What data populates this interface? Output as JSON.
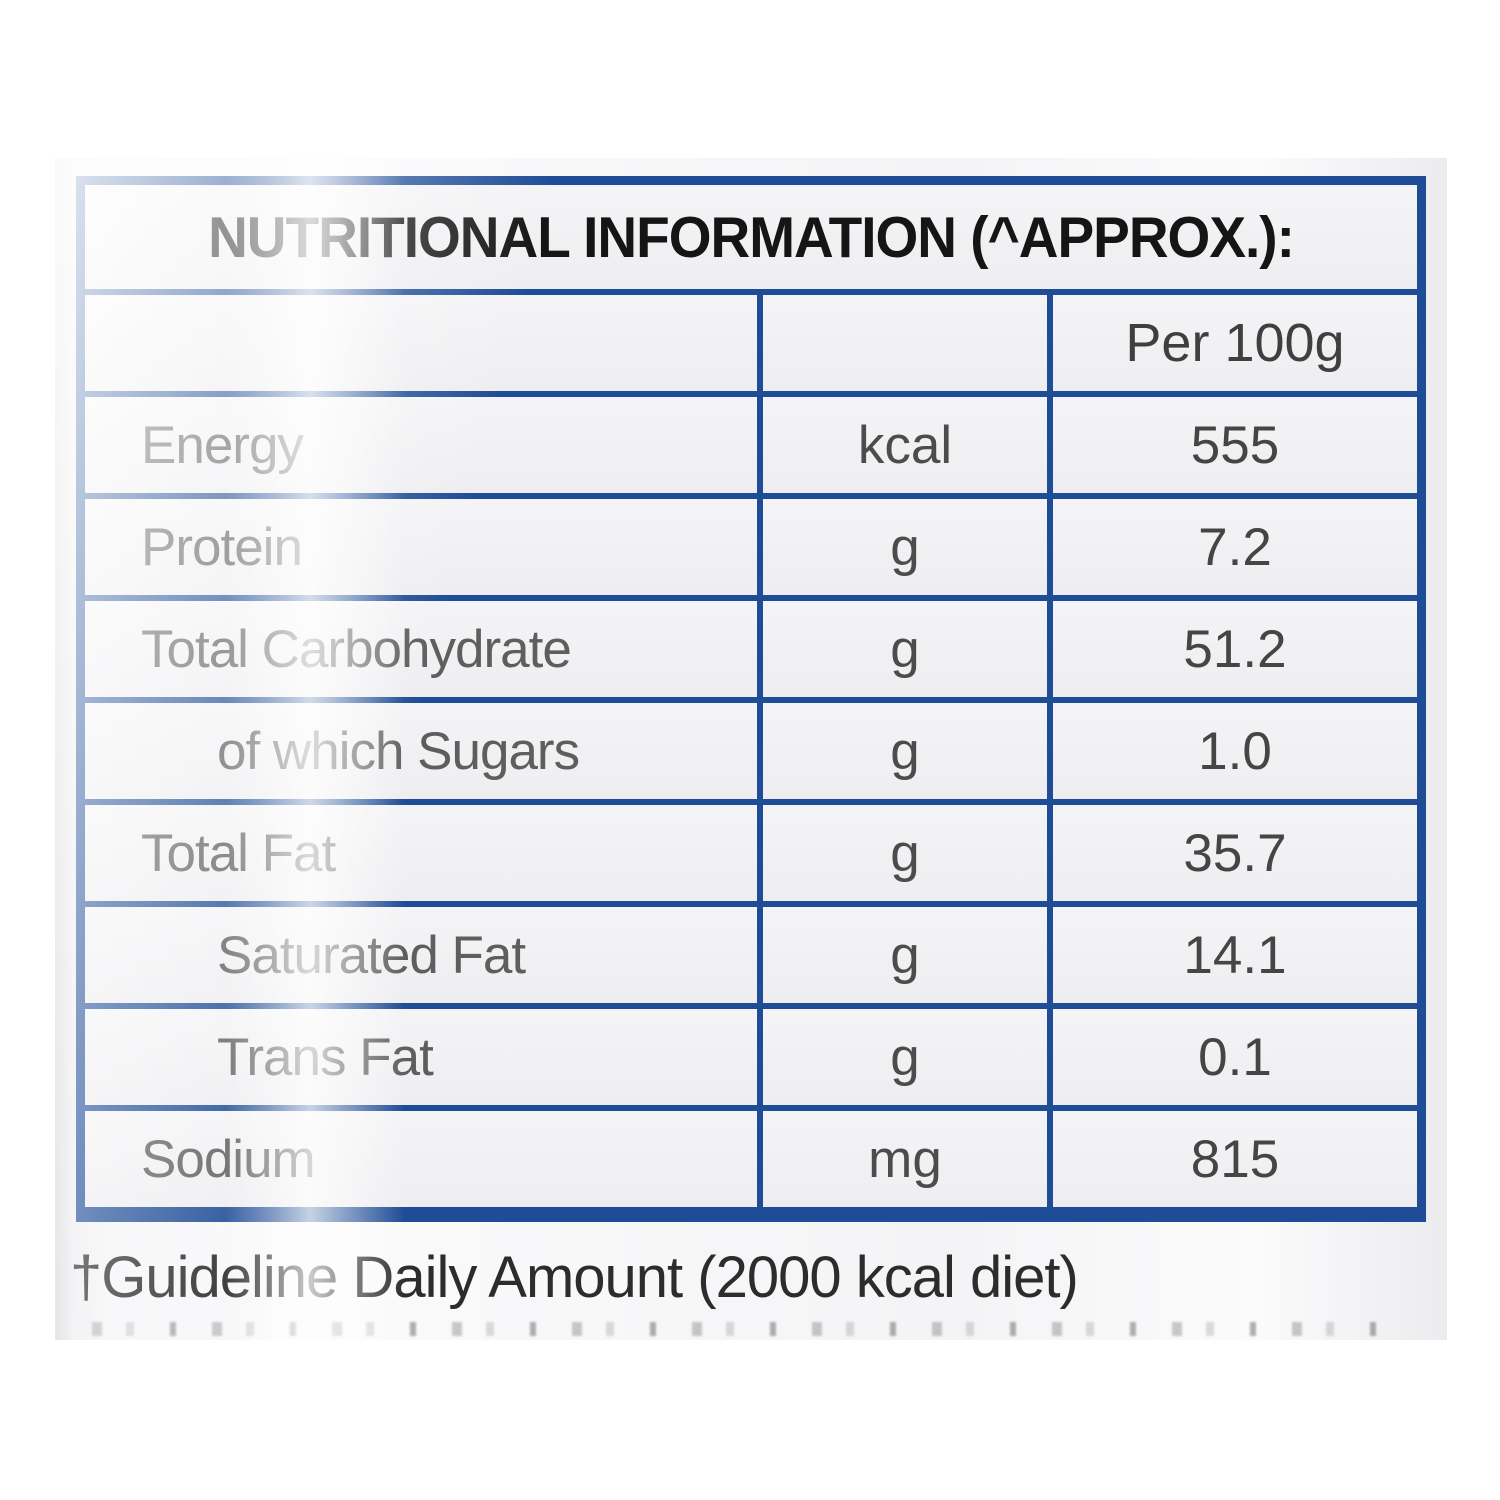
{
  "header": {
    "title": "NUTRITIONAL INFORMATION (^APPROX.):"
  },
  "columns": {
    "amount_header": "Per 100g"
  },
  "rows": [
    {
      "label": "Energy",
      "unit": "kcal",
      "value": "555",
      "indent": false
    },
    {
      "label": "Protein",
      "unit": "g",
      "value": "7.2",
      "indent": false
    },
    {
      "label": "Total Carbohydrate",
      "unit": "g",
      "value": "51.2",
      "indent": false
    },
    {
      "label": "of which Sugars",
      "unit": "g",
      "value": "1.0",
      "indent": true
    },
    {
      "label": "Total Fat",
      "unit": "g",
      "value": "35.7",
      "indent": false
    },
    {
      "label": "Saturated Fat",
      "unit": "g",
      "value": "14.1",
      "indent": true
    },
    {
      "label": "Trans Fat",
      "unit": "g",
      "value": "0.1",
      "indent": true
    },
    {
      "label": "Sodium",
      "unit": "mg",
      "value": "815",
      "indent": false
    }
  ],
  "footnote": "†Guideline Daily Amount (2000 kcal diet)",
  "colors": {
    "table_border": "#1e4c96",
    "cell_background": "#f2f2f4",
    "title_text": "#151515",
    "label_text": "#5e5e5e",
    "value_text": "#454545"
  }
}
